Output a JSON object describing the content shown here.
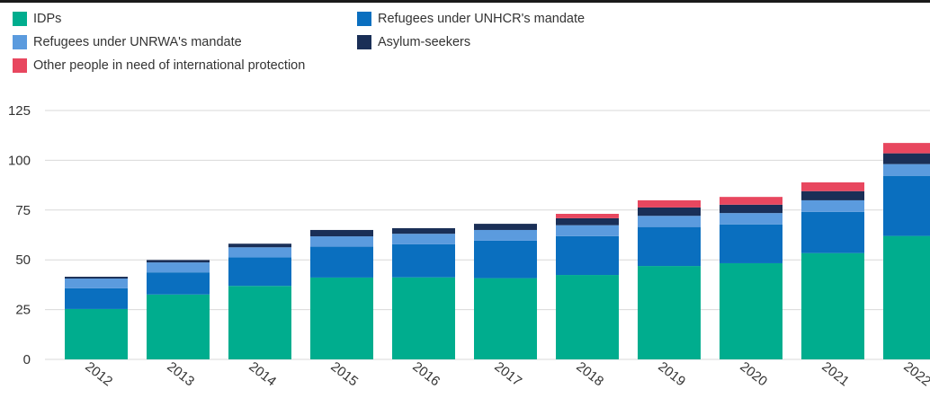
{
  "chart_data": {
    "type": "bar",
    "stacked": true,
    "title": "",
    "xlabel": "",
    "ylabel": "",
    "ylim": [
      0,
      125
    ],
    "yticks": [
      0,
      25,
      50,
      75,
      100,
      125
    ],
    "grid": true,
    "legend_position": "top-left",
    "categories": [
      "2012",
      "2013",
      "2014",
      "2015",
      "2016",
      "2017",
      "2018",
      "2019",
      "2020",
      "2021",
      "2022"
    ],
    "series": [
      {
        "name": "IDPs",
        "color": "#00ad8e",
        "values": [
          25.3,
          32.6,
          36.9,
          41.1,
          41.2,
          40.8,
          42.4,
          46.9,
          48.3,
          53.4,
          62.0
        ]
      },
      {
        "name": "Refugees under UNHCR's mandate",
        "color": "#0a6fbf",
        "values": [
          10.4,
          11.1,
          14.3,
          15.5,
          16.6,
          18.8,
          19.5,
          19.6,
          19.5,
          20.7,
          30.2
        ]
      },
      {
        "name": "Refugees under UNRWA's mandate",
        "color": "#5b9bde",
        "values": [
          4.9,
          5.0,
          5.1,
          5.2,
          5.3,
          5.4,
          5.5,
          5.6,
          5.7,
          5.8,
          5.9
        ]
      },
      {
        "name": "Asylum-seekers",
        "color": "#1a2f57",
        "values": [
          0.9,
          1.2,
          1.8,
          3.2,
          2.8,
          3.1,
          3.5,
          4.2,
          4.2,
          4.6,
          5.4
        ]
      },
      {
        "name": "Other people in need of international protection",
        "color": "#e8475f",
        "values": [
          0,
          0,
          0,
          0,
          0,
          0,
          2.2,
          3.6,
          3.9,
          4.4,
          5.2
        ]
      }
    ],
    "legend_layout": [
      {
        "series": 0,
        "col": 0,
        "row": 0
      },
      {
        "series": 1,
        "col": 1,
        "row": 0
      },
      {
        "series": 2,
        "col": 0,
        "row": 1
      },
      {
        "series": 3,
        "col": 1,
        "row": 1
      },
      {
        "series": 4,
        "col": 0,
        "row": 2
      }
    ]
  }
}
